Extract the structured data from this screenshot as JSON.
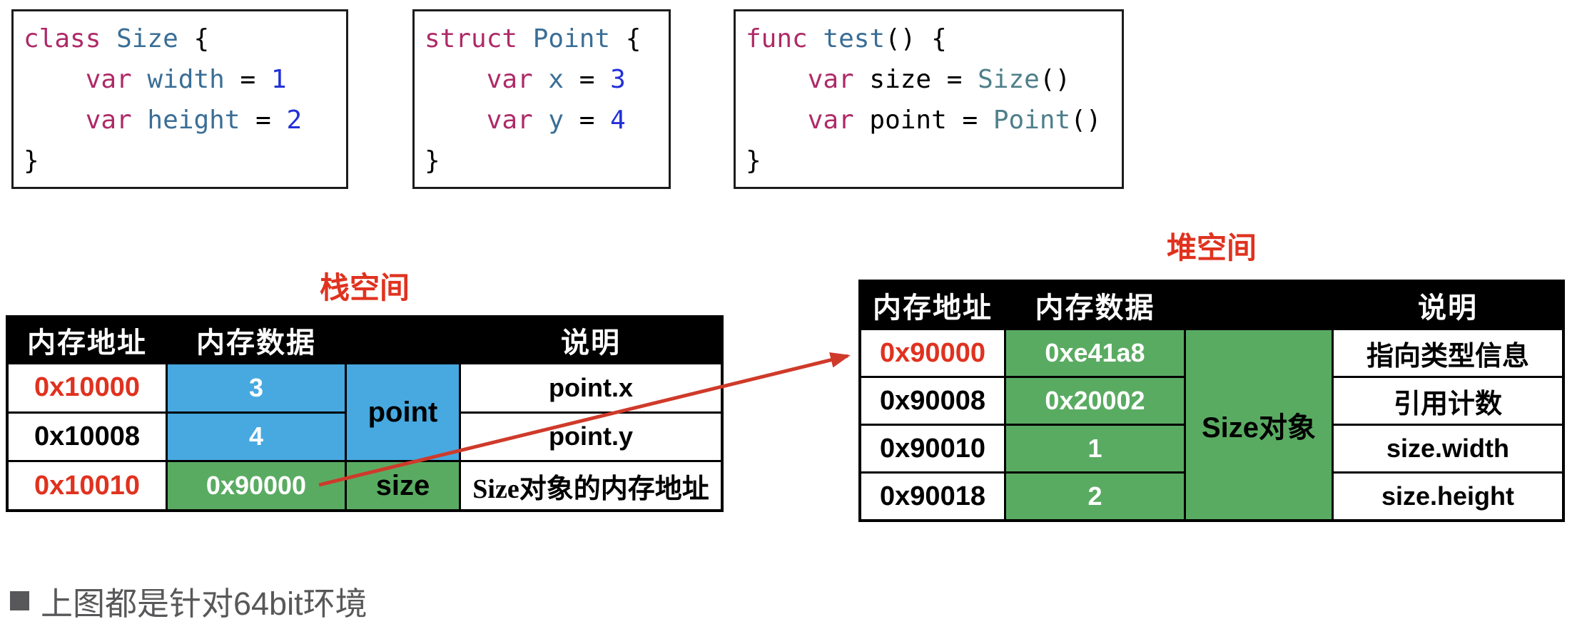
{
  "colors": {
    "accent_red": "#e0321f",
    "cell_blue": "#47a9e0",
    "cell_green": "#5aab62",
    "code_keyword": "#ae2a67",
    "code_name": "#3a6e96",
    "code_number": "#2230d8",
    "code_type": "#4e7f8a",
    "note_gray": "#58585a"
  },
  "code_boxes": [
    {
      "name": "size-class-definition",
      "lines": [
        [
          {
            "t": "class",
            "c": "kw"
          },
          {
            "t": " ",
            "c": "plain"
          },
          {
            "t": "Size",
            "c": "name"
          },
          {
            "t": " {",
            "c": "plain"
          }
        ],
        [
          {
            "t": "    ",
            "c": "plain"
          },
          {
            "t": "var",
            "c": "kw"
          },
          {
            "t": " ",
            "c": "plain"
          },
          {
            "t": "width",
            "c": "name"
          },
          {
            "t": " = ",
            "c": "plain"
          },
          {
            "t": "1",
            "c": "num"
          }
        ],
        [
          {
            "t": "    ",
            "c": "plain"
          },
          {
            "t": "var",
            "c": "kw"
          },
          {
            "t": " ",
            "c": "plain"
          },
          {
            "t": "height",
            "c": "name"
          },
          {
            "t": " = ",
            "c": "plain"
          },
          {
            "t": "2",
            "c": "num"
          }
        ],
        [
          {
            "t": "}",
            "c": "plain"
          }
        ]
      ]
    },
    {
      "name": "point-struct-definition",
      "lines": [
        [
          {
            "t": "struct",
            "c": "kw"
          },
          {
            "t": " ",
            "c": "plain"
          },
          {
            "t": "Point",
            "c": "name"
          },
          {
            "t": " {",
            "c": "plain"
          }
        ],
        [
          {
            "t": "    ",
            "c": "plain"
          },
          {
            "t": "var",
            "c": "kw"
          },
          {
            "t": " ",
            "c": "plain"
          },
          {
            "t": "x",
            "c": "name"
          },
          {
            "t": " = ",
            "c": "plain"
          },
          {
            "t": "3",
            "c": "num"
          }
        ],
        [
          {
            "t": "    ",
            "c": "plain"
          },
          {
            "t": "var",
            "c": "kw"
          },
          {
            "t": " ",
            "c": "plain"
          },
          {
            "t": "y",
            "c": "name"
          },
          {
            "t": " = ",
            "c": "plain"
          },
          {
            "t": "4",
            "c": "num"
          }
        ],
        [
          {
            "t": "}",
            "c": "plain"
          }
        ]
      ]
    },
    {
      "name": "test-function",
      "lines": [
        [
          {
            "t": "func",
            "c": "kw"
          },
          {
            "t": " ",
            "c": "plain"
          },
          {
            "t": "test",
            "c": "name"
          },
          {
            "t": "() {",
            "c": "plain"
          }
        ],
        [
          {
            "t": "    ",
            "c": "plain"
          },
          {
            "t": "var",
            "c": "kw"
          },
          {
            "t": " size = ",
            "c": "plain"
          },
          {
            "t": "Size",
            "c": "type"
          },
          {
            "t": "()",
            "c": "plain"
          }
        ],
        [
          {
            "t": "    ",
            "c": "plain"
          },
          {
            "t": "var",
            "c": "kw"
          },
          {
            "t": " point = ",
            "c": "plain"
          },
          {
            "t": "Point",
            "c": "type"
          },
          {
            "t": "()",
            "c": "plain"
          }
        ],
        [
          {
            "t": "}",
            "c": "plain"
          }
        ]
      ]
    }
  ],
  "stack_table": {
    "title": "栈空间",
    "headers": {
      "address": "内存地址",
      "data": "内存数据",
      "variable": "",
      "desc": "说明"
    },
    "rows": [
      {
        "address": "0x10000",
        "address_color": "red",
        "value": "3",
        "desc": "point.x"
      },
      {
        "address": "0x10008",
        "address_color": "black",
        "value": "4",
        "desc": "point.y"
      },
      {
        "address": "0x10010",
        "address_color": "red",
        "value": "0x90000",
        "desc": "Size对象的内存地址"
      }
    ],
    "labels": {
      "point": "point",
      "size": "size"
    }
  },
  "heap_table": {
    "title": "堆空间",
    "headers": {
      "address": "内存地址",
      "data": "内存数据",
      "variable": "",
      "desc": "说明"
    },
    "rows": [
      {
        "address": "0x90000",
        "address_color": "red",
        "value": "0xe41a8",
        "desc": "指向类型信息"
      },
      {
        "address": "0x90008",
        "address_color": "black",
        "value": "0x20002",
        "desc": "引用计数"
      },
      {
        "address": "0x90010",
        "address_color": "black",
        "value": "1",
        "desc": "size.width"
      },
      {
        "address": "0x90018",
        "address_color": "black",
        "value": "2",
        "desc": "size.height"
      }
    ],
    "labels": {
      "object": "Size对象"
    }
  },
  "note": {
    "text": "上图都是针对64bit环境"
  }
}
